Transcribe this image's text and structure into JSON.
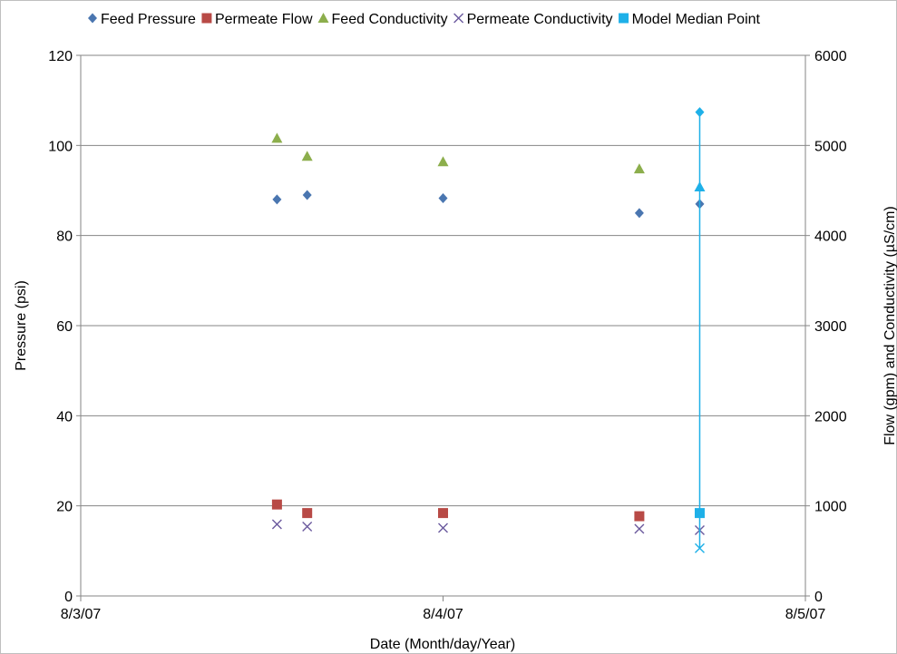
{
  "chart_data": {
    "type": "scatter",
    "title": "",
    "xlabel": "Date (Month/day/Year)",
    "ylabel_left": "Pressure (psi)",
    "ylabel_right": "Flow (gpm) and Conductivity (µS/cm)",
    "x_ticks": [
      "8/3/07",
      "8/4/07",
      "8/5/07"
    ],
    "xlim": [
      "8/3/07",
      "8/5/07"
    ],
    "y_left_lim": [
      0,
      120
    ],
    "y_left_ticks": [
      "0",
      "20",
      "40",
      "60",
      "80",
      "100",
      "120"
    ],
    "y_right_lim": [
      0,
      6000
    ],
    "y_right_ticks": [
      "0",
      "1000",
      "2000",
      "3000",
      "4000",
      "5000",
      "6000"
    ],
    "grid": "horizontal",
    "legend_position": "top",
    "series": [
      {
        "name": "Feed Pressure",
        "axis": "left",
        "marker": "diamond",
        "color": "#4a76b0",
        "points": [
          {
            "x": "8/3/07 13:00",
            "y": 88
          },
          {
            "x": "8/3/07 15:00",
            "y": 89
          },
          {
            "x": "8/4/07 00:00",
            "y": 88.3
          },
          {
            "x": "8/4/07 13:00",
            "y": 85
          },
          {
            "x": "8/4/07 17:00",
            "y": 87
          }
        ]
      },
      {
        "name": "Permeate Flow",
        "axis": "right",
        "marker": "square",
        "color": "#b84a46",
        "points": [
          {
            "x": "8/3/07 13:00",
            "y": 1015
          },
          {
            "x": "8/3/07 15:00",
            "y": 920
          },
          {
            "x": "8/4/07 00:00",
            "y": 920
          },
          {
            "x": "8/4/07 13:00",
            "y": 885
          }
        ]
      },
      {
        "name": "Feed Conductivity",
        "axis": "right",
        "marker": "triangle",
        "color": "#8cae4c",
        "points": [
          {
            "x": "8/3/07 13:00",
            "y": 5080
          },
          {
            "x": "8/3/07 15:00",
            "y": 4880
          },
          {
            "x": "8/4/07 00:00",
            "y": 4820
          },
          {
            "x": "8/4/07 13:00",
            "y": 4740
          }
        ]
      },
      {
        "name": "Permeate Conductivity",
        "axis": "right",
        "marker": "x",
        "color": "#6b5a9e",
        "points": [
          {
            "x": "8/3/07 13:00",
            "y": 795
          },
          {
            "x": "8/3/07 15:00",
            "y": 770
          },
          {
            "x": "8/4/07 00:00",
            "y": 755
          },
          {
            "x": "8/4/07 13:00",
            "y": 745
          },
          {
            "x": "8/4/07 17:00",
            "y": 730
          }
        ]
      },
      {
        "name": "Model Median Point",
        "axis": "right",
        "marker": "square",
        "color": "#1eb0e8",
        "points": [
          {
            "x": "8/4/07 17:00",
            "y": 920
          }
        ],
        "range_line": {
          "x": "8/4/07 17:00",
          "high": 5370,
          "low": 530,
          "high_marker": "diamond",
          "mid_marker": "triangle",
          "mid": 4540,
          "low_marker": "x"
        }
      }
    ]
  }
}
